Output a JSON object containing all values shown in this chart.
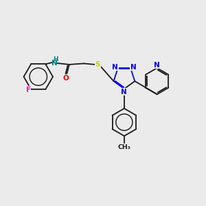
{
  "bg_color": "#ebebeb",
  "bond_color": "#1a1a1a",
  "N_color": "#0000ff",
  "O_color": "#ff0000",
  "S_color": "#cccc00",
  "F_color": "#ff00cc",
  "NH_color": "#008080",
  "lw": 1.3,
  "fs": 7.5,
  "xlim": [
    0,
    10
  ],
  "ylim": [
    0,
    10
  ]
}
